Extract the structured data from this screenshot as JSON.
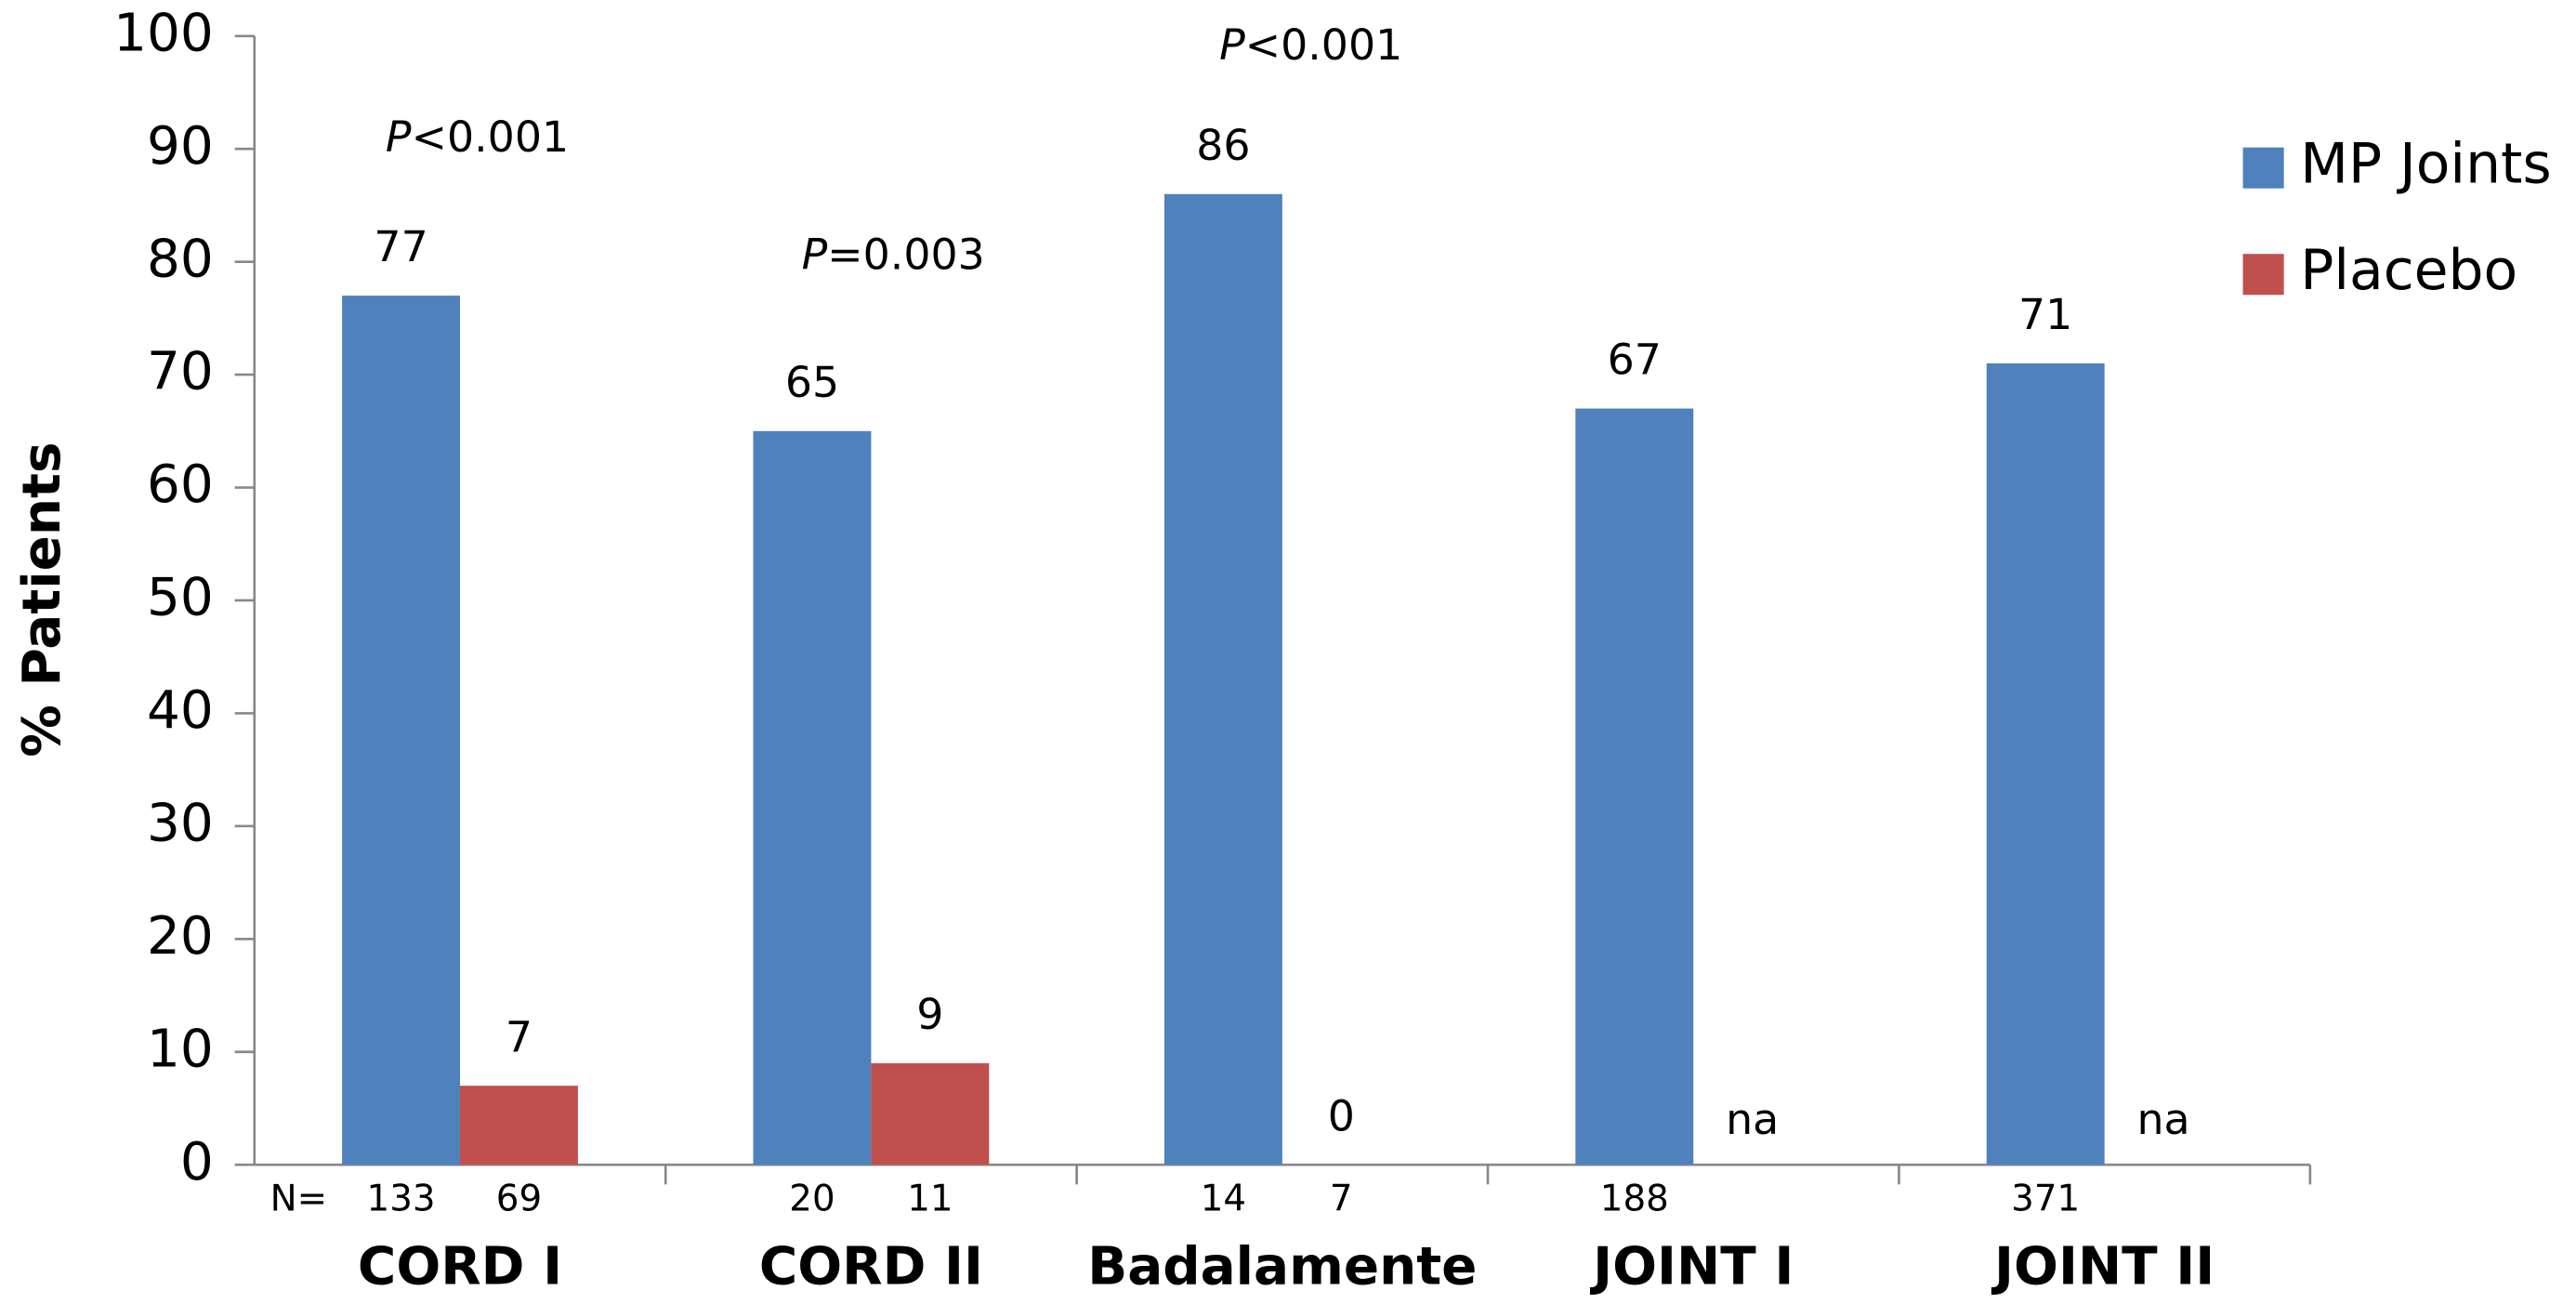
{
  "chart_data": {
    "type": "bar",
    "y_label": "% Patients",
    "categories": [
      "CORD I",
      "CORD II",
      "Badalamente",
      "JOINT I",
      "JOINT II"
    ],
    "series": [
      {
        "name": "MP Joints",
        "color": "#4f81bd",
        "values": [
          77,
          65,
          86,
          67,
          71
        ]
      },
      {
        "name": "Placebo",
        "color": "#c0504d",
        "values": [
          7,
          9,
          0,
          null,
          null
        ],
        "value_labels": [
          "7",
          "9",
          "0",
          "na",
          "na"
        ]
      }
    ],
    "n_label": "N=",
    "n_counts": [
      [
        133,
        69
      ],
      [
        20,
        11
      ],
      [
        14,
        7
      ],
      [
        188,
        null
      ],
      [
        371,
        null
      ]
    ],
    "p_symbol": "P",
    "annotations": [
      {
        "category": "CORD I",
        "text": "<0.001"
      },
      {
        "category": "CORD II",
        "text": "=0.003"
      },
      {
        "category": "Badalamente",
        "text": "<0.001"
      }
    ],
    "ylim": [
      0,
      100
    ],
    "yticks": [
      0,
      10,
      20,
      30,
      40,
      50,
      60,
      70,
      80,
      90,
      100
    ],
    "grid": false,
    "legend": "right"
  }
}
